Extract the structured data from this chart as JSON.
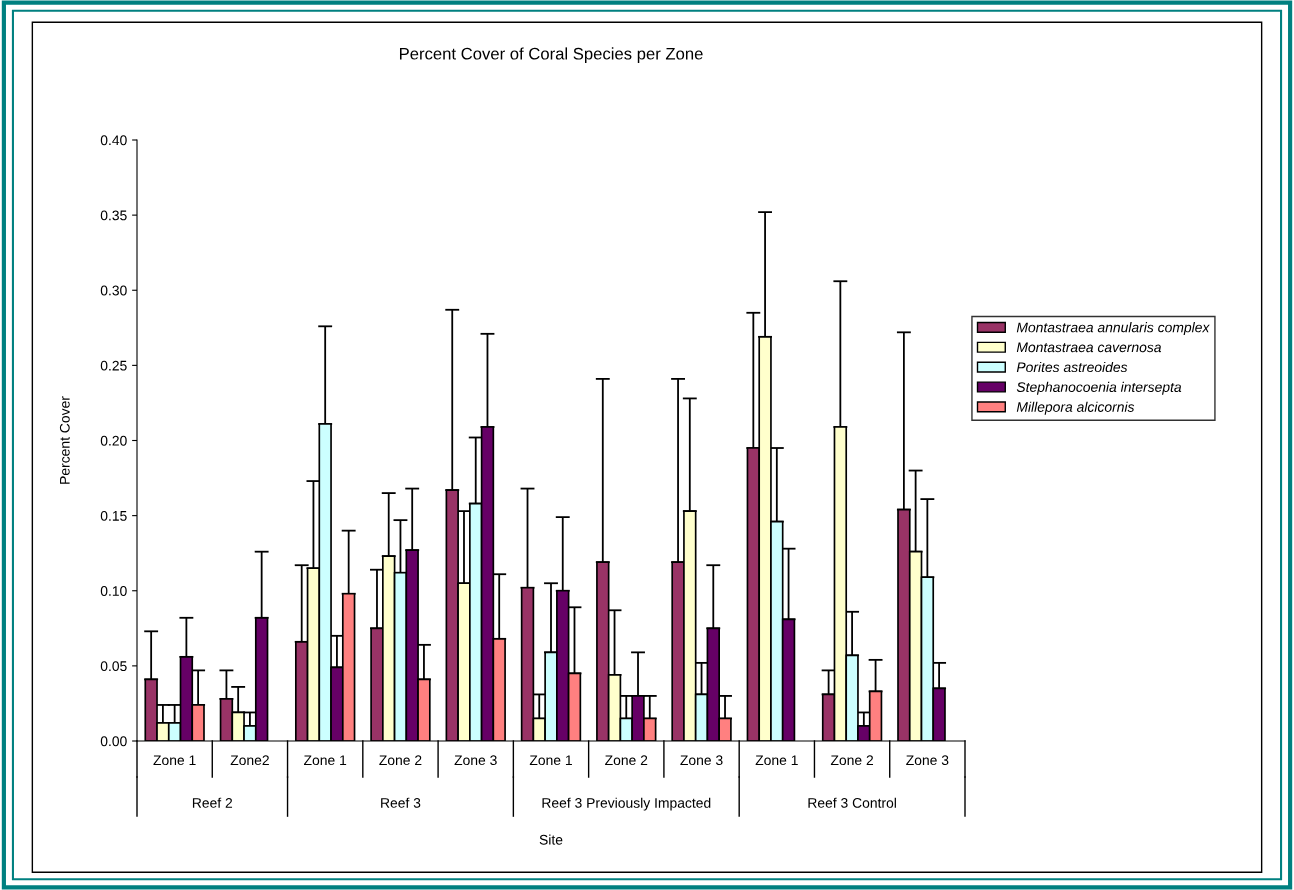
{
  "chart_data": {
    "type": "bar",
    "title": "Percent Cover of Coral Species per Zone",
    "xlabel": "Site",
    "ylabel": "Percent Cover",
    "categories": [
      "Zone 1",
      "Zone2",
      "Zone 1",
      "Zone 2",
      "Zone 3",
      "Zone 1",
      "Zone 2",
      "Zone 3",
      "Zone 1",
      "Zone 2",
      "Zone 3"
    ],
    "annotations": [
      "Reef 2",
      "Reef 3",
      "Reef 3 Previously Impacted",
      "Reef 3 Control"
    ],
    "series": [
      {
        "name": "Montastraea annularis complex",
        "color": "#993366",
        "values": [
          0.041,
          0.028,
          0.066,
          0.075,
          0.167,
          0.102,
          0.119,
          0.119,
          0.195,
          0.031,
          0.154
        ],
        "errors": [
          [
            0.041,
            0.073
          ],
          [
            0.028,
            0.047
          ],
          [
            0.066,
            0.117
          ],
          [
            0.075,
            0.114
          ],
          [
            0.167,
            0.287
          ],
          [
            0.102,
            0.168
          ],
          [
            0.119,
            0.241
          ],
          [
            0.119,
            0.241
          ],
          [
            0.195,
            0.285
          ],
          [
            0.031,
            0.047
          ],
          [
            0.154,
            0.272
          ]
        ]
      },
      {
        "name": "Montastraea cavernosa",
        "color": "#ffffcc",
        "values": [
          0.012,
          0.019,
          0.115,
          0.123,
          0.105,
          0.015,
          0.044,
          0.153,
          0.269,
          0.209,
          0.126
        ],
        "errors": [
          [
            0.012,
            0.024
          ],
          [
            0.019,
            0.036
          ],
          [
            0.115,
            0.173
          ],
          [
            0.123,
            0.165
          ],
          [
            0.105,
            0.153
          ],
          [
            0.015,
            0.031
          ],
          [
            0.044,
            0.087
          ],
          [
            0.153,
            0.228
          ],
          [
            0.269,
            0.352
          ],
          [
            0.209,
            0.306
          ],
          [
            0.126,
            0.18
          ]
        ]
      },
      {
        "name": "Porites astreoides",
        "color": "#ccffff",
        "values": [
          0.012,
          0.01,
          0.211,
          0.112,
          0.158,
          0.059,
          0.015,
          0.031,
          0.146,
          0.057,
          0.109
        ],
        "errors": [
          [
            0.012,
            0.024
          ],
          [
            0.01,
            0.019
          ],
          [
            0.211,
            0.276
          ],
          [
            0.112,
            0.147
          ],
          [
            0.158,
            0.202
          ],
          [
            0.059,
            0.105
          ],
          [
            0.015,
            0.03
          ],
          [
            0.031,
            0.052
          ],
          [
            0.146,
            0.195
          ],
          [
            0.057,
            0.086
          ],
          [
            0.109,
            0.161
          ]
        ]
      },
      {
        "name": "Stephanocoenia intersepta",
        "color": "#660066",
        "values": [
          0.056,
          0.082,
          0.049,
          0.127,
          0.209,
          0.1,
          0.03,
          0.075,
          0.081,
          0.01,
          0.035
        ],
        "errors": [
          [
            0.056,
            0.082
          ],
          [
            0.082,
            0.126
          ],
          [
            0.049,
            0.07
          ],
          [
            0.127,
            0.168
          ],
          [
            0.209,
            0.271
          ],
          [
            0.1,
            0.149
          ],
          [
            0.03,
            0.059
          ],
          [
            0.075,
            0.117
          ],
          [
            0.081,
            0.128
          ],
          [
            0.01,
            0.019
          ],
          [
            0.035,
            0.052
          ]
        ]
      },
      {
        "name": "Millepora alcicornis",
        "color": "#ff8080",
        "values": [
          0.024,
          null,
          0.098,
          0.041,
          0.068,
          0.045,
          0.015,
          0.015,
          null,
          0.033,
          null
        ],
        "errors": [
          [
            0.024,
            0.047
          ],
          null,
          [
            0.098,
            0.14
          ],
          [
            0.041,
            0.064
          ],
          [
            0.068,
            0.111
          ],
          [
            0.045,
            0.089
          ],
          [
            0.015,
            0.03
          ],
          [
            0.015,
            0.03
          ],
          null,
          [
            0.033,
            0.054
          ],
          null
        ]
      }
    ],
    "ylim": [
      0,
      0.4
    ],
    "yticks": [
      {
        "value": 0,
        "label": "0.00"
      },
      {
        "value": 0.05,
        "label": "0.05"
      },
      {
        "value": 0.1,
        "label": "0.10"
      },
      {
        "value": 0.15,
        "label": "0.15"
      },
      {
        "value": 0.2,
        "label": "0.20"
      },
      {
        "value": 0.25,
        "label": "0.25"
      },
      {
        "value": 0.3,
        "label": "0.30"
      },
      {
        "value": 0.35,
        "label": "0.35"
      },
      {
        "value": 0.4,
        "label": "0.40"
      }
    ],
    "grid": false,
    "legend": "right"
  }
}
